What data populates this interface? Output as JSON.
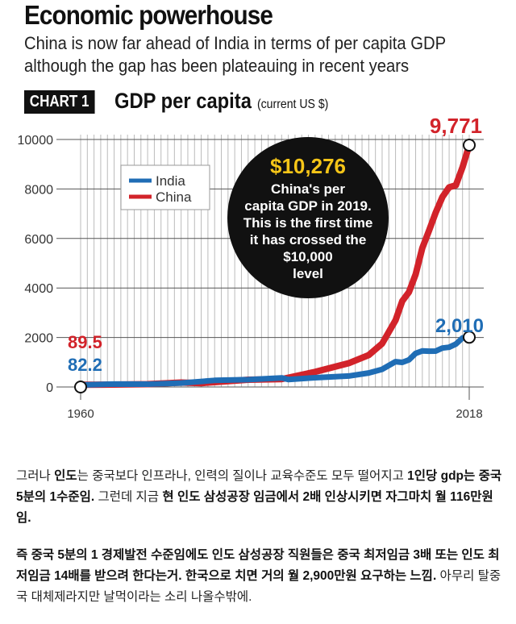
{
  "header": {
    "title": "Economic powerhouse",
    "subtitle_1": "China is now far ahead of India in terms of per capita GDP",
    "subtitle_2": "although the gap has been plateauing in recent years"
  },
  "chart_data": {
    "type": "line",
    "badge": "CHART 1",
    "title": "GDP per capita",
    "unit": "(current US $)",
    "xlim": [
      1960,
      2018
    ],
    "ylim": [
      0,
      10000
    ],
    "yticks": [
      "0",
      "2000",
      "4000",
      "6000",
      "8000",
      "10000"
    ],
    "xticks": [
      "1960",
      "2018"
    ],
    "series": [
      {
        "name": "India",
        "color": "#1f6db5",
        "points": [
          [
            1960,
            82.2
          ],
          [
            1965,
            119
          ],
          [
            1970,
            112
          ],
          [
            1975,
            158
          ],
          [
            1980,
            267
          ],
          [
            1985,
            297
          ],
          [
            1990,
            368
          ],
          [
            1991,
            303
          ],
          [
            1995,
            374
          ],
          [
            2000,
            443
          ],
          [
            2003,
            566
          ],
          [
            2005,
            714
          ],
          [
            2007,
            1023
          ],
          [
            2008,
            993
          ],
          [
            2009,
            1096
          ],
          [
            2010,
            1358
          ],
          [
            2011,
            1458
          ],
          [
            2012,
            1444
          ],
          [
            2013,
            1450
          ],
          [
            2014,
            1574
          ],
          [
            2015,
            1606
          ],
          [
            2016,
            1733
          ],
          [
            2017,
            1982
          ],
          [
            2018,
            2010
          ]
        ]
      },
      {
        "name": "China",
        "color": "#d2232a",
        "points": [
          [
            1960,
            89.5
          ],
          [
            1965,
            98
          ],
          [
            1970,
            113
          ],
          [
            1975,
            178
          ],
          [
            1978,
            156
          ],
          [
            1980,
            195
          ],
          [
            1985,
            294
          ],
          [
            1990,
            318
          ],
          [
            1995,
            610
          ],
          [
            2000,
            959
          ],
          [
            2003,
            1288
          ],
          [
            2005,
            1753
          ],
          [
            2007,
            2694
          ],
          [
            2008,
            3468
          ],
          [
            2009,
            3832
          ],
          [
            2010,
            4550
          ],
          [
            2011,
            5618
          ],
          [
            2012,
            6317
          ],
          [
            2013,
            7051
          ],
          [
            2014,
            7679
          ],
          [
            2015,
            8067
          ],
          [
            2016,
            8148
          ],
          [
            2017,
            8879
          ],
          [
            2018,
            9771
          ]
        ]
      }
    ],
    "labels": {
      "china_start": "89.5",
      "india_start": "82.2",
      "china_end": "9,771",
      "india_end": "2,010"
    },
    "annotation": {
      "value": "$10,276",
      "l1": "China's per",
      "l2": "capita GDP in 2019.",
      "l3": "This is the first time",
      "l4": "it has crossed the",
      "l5": "$10,000",
      "l6": "level"
    }
  },
  "text": {
    "p1": [
      [
        "그러나 ",
        0
      ],
      [
        "인도",
        1
      ],
      [
        "는 중국보다 인프라나, 인력의 질이나 교육수준도 모두 떨어지고 ",
        0
      ],
      [
        "1인당 gdp는 중국 5분의 1수준임.",
        1
      ],
      [
        " 그런데 지금 ",
        0
      ],
      [
        "현 인도 삼성공장 임금에서 2배 인상시키면 자그마치 월 116만원임.",
        1
      ]
    ],
    "p2": [
      [
        "즉 중국 5분의 1 경제발전 수준임에도 인도 삼성공장 직원들은 중국 최저임금 3배 또는 인도 최저임금 14배를 받으려 한다는거. 한국으로 치면 거의 월 2,900만원 요구하는 느낌.",
        1
      ],
      [
        " 아무리 탈중국 대체제라지만 날먹이라는 소리 나올수밖에.",
        0
      ]
    ]
  }
}
